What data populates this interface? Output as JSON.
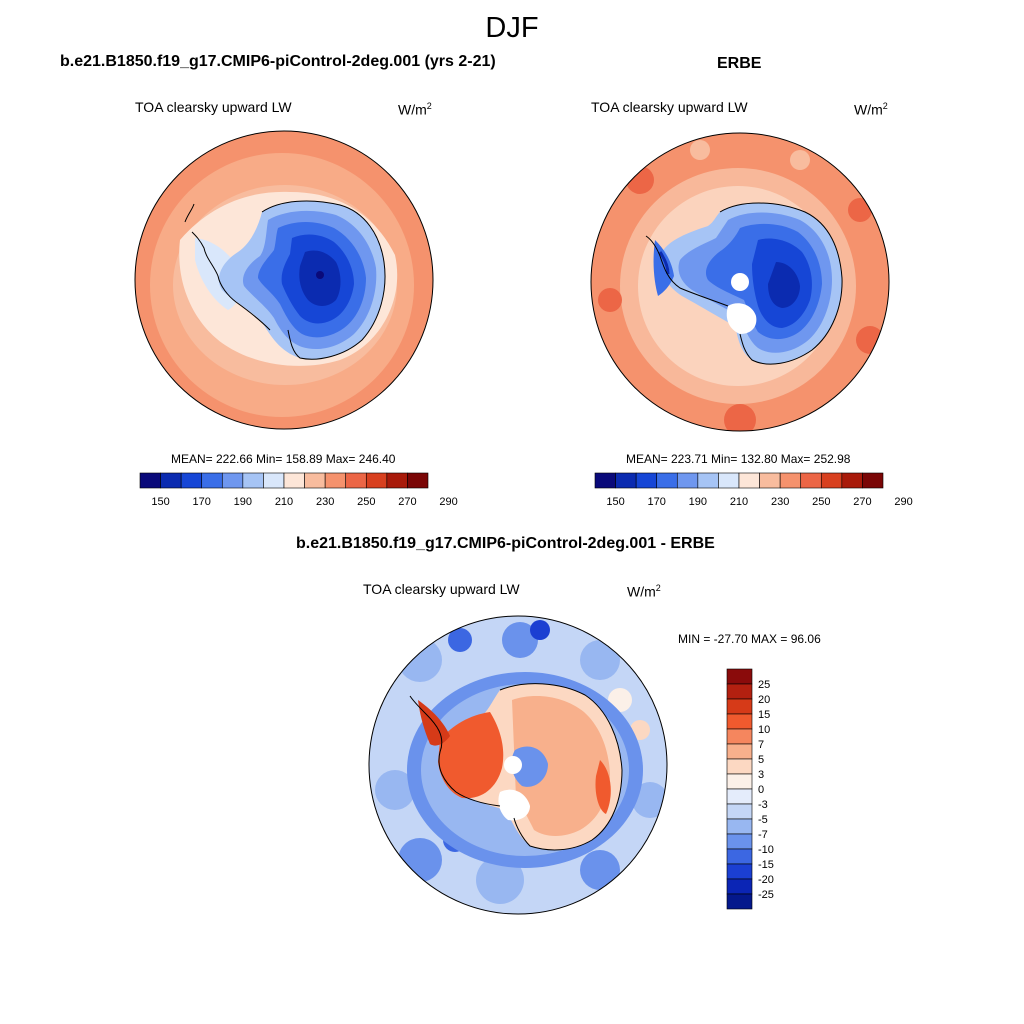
{
  "page": {
    "title": "DJF"
  },
  "panels": [
    {
      "title": "b.e21.B1850.f19_g17.CMIP6-piControl-2deg.001 (yrs 2-21)",
      "variable": "TOA clearsky upward LW",
      "units_base": "W/m",
      "units_exp": "2",
      "stats": "MEAN= 222.66  Min= 158.89  Max= 246.40"
    },
    {
      "title": "ERBE",
      "variable": "TOA clearsky upward LW",
      "units_base": "W/m",
      "units_exp": "2",
      "stats": "MEAN= 223.71  Min= 132.80  Max= 252.98"
    },
    {
      "title": "b.e21.B1850.f19_g17.CMIP6-piControl-2deg.001 - ERBE",
      "variable": "TOA clearsky upward LW",
      "units_base": "W/m",
      "units_exp": "2",
      "stats": "MIN = -27.70 MAX =  96.06"
    }
  ],
  "colorbars": {
    "absolute": {
      "labels": [
        "150",
        "170",
        "190",
        "210",
        "230",
        "250",
        "270",
        "290"
      ],
      "colors": [
        "#0a0a7a",
        "#0b2bb0",
        "#1646d6",
        "#3a6ee8",
        "#6f97ef",
        "#a6c4f5",
        "#d9e7fb",
        "#fde6d8",
        "#f8bc9e",
        "#f5926d",
        "#ec6646",
        "#d8401f",
        "#a81a0a",
        "#7a0606"
      ]
    },
    "difference": {
      "labels": [
        "25",
        "20",
        "15",
        "10",
        "7",
        "5",
        "3",
        "0",
        "-3",
        "-5",
        "-7",
        "-10",
        "-15",
        "-20",
        "-25"
      ],
      "colors": [
        "#8a0b0b",
        "#b32010",
        "#d63a18",
        "#f05a2e",
        "#f5865e",
        "#f8b08c",
        "#fcd8c2",
        "#fbf0e8",
        "#e4ecfb",
        "#c4d6f6",
        "#98b7f1",
        "#6a92ec",
        "#3c67e2",
        "#1b3fd2",
        "#0b25b5",
        "#04188c"
      ]
    }
  }
}
